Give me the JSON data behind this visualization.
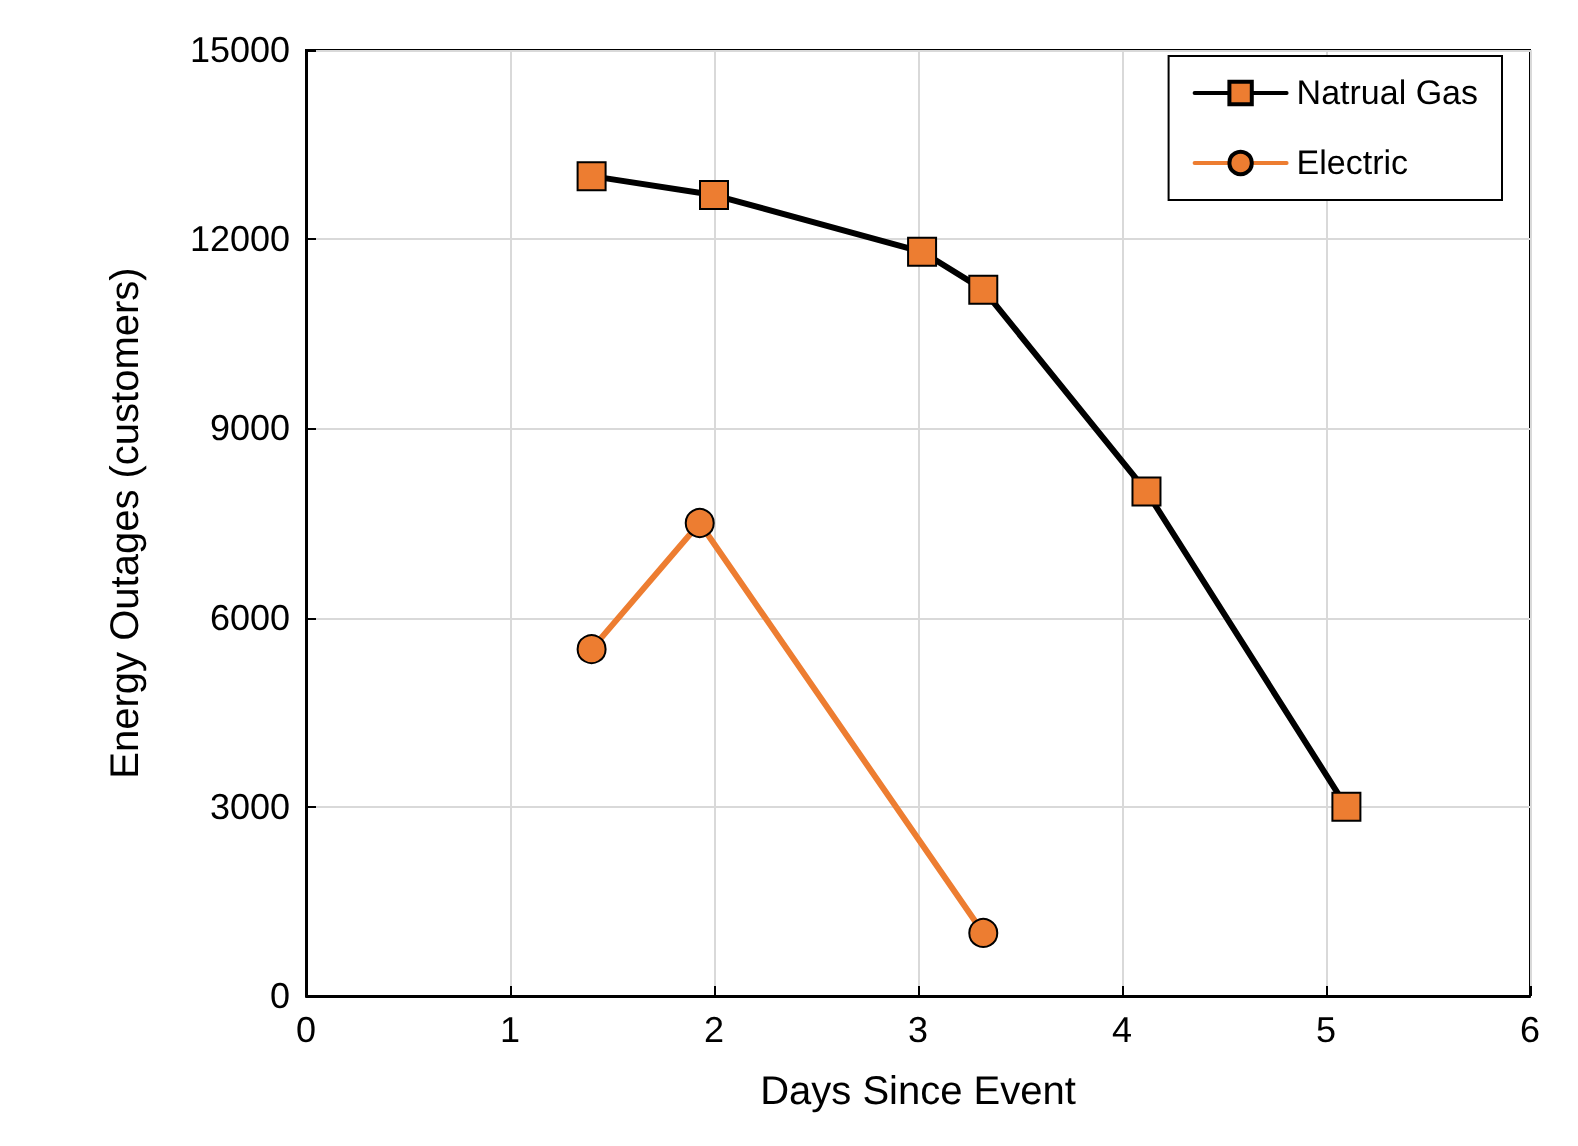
{
  "chart_data": {
    "type": "line",
    "xlabel": "Days Since Event",
    "ylabel": "Energy Outages (customers)",
    "xlim": [
      0,
      6
    ],
    "xticks": [
      0,
      1,
      2,
      3,
      4,
      5,
      6
    ],
    "ylim": [
      0,
      15000
    ],
    "yticks": [
      0,
      3000,
      6000,
      9000,
      12000,
      15000
    ],
    "grid": true,
    "legend": "top right",
    "series": [
      {
        "name": "Natrual Gas",
        "color": "#000000",
        "marker": "square",
        "x": [
          1.4,
          2.0,
          3.02,
          3.32,
          4.12,
          5.1
        ],
        "values": [
          13000,
          12700,
          11800,
          11200,
          8000,
          3000
        ]
      },
      {
        "name": "Electric",
        "color": "#ed7d31",
        "marker": "circle",
        "x": [
          1.4,
          1.93,
          3.32
        ],
        "values": [
          5500,
          7500,
          1000
        ]
      }
    ]
  }
}
